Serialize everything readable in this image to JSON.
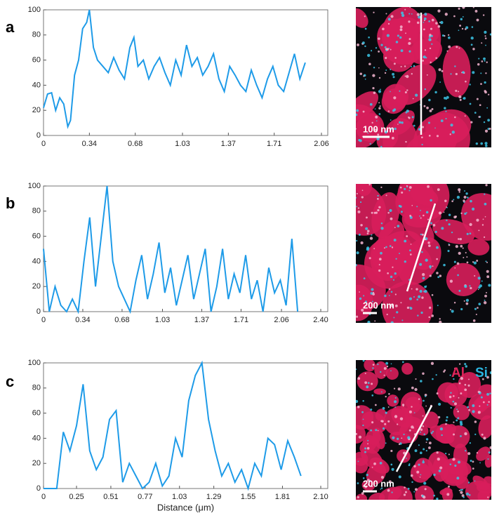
{
  "chart_data": [
    {
      "type": "line",
      "panel_label": "a",
      "x": [
        0,
        0.03,
        0.06,
        0.09,
        0.12,
        0.15,
        0.18,
        0.2,
        0.23,
        0.26,
        0.29,
        0.32,
        0.34,
        0.37,
        0.4,
        0.44,
        0.48,
        0.52,
        0.56,
        0.6,
        0.64,
        0.67,
        0.7,
        0.74,
        0.78,
        0.82,
        0.86,
        0.9,
        0.94,
        0.98,
        1.02,
        1.06,
        1.1,
        1.14,
        1.18,
        1.22,
        1.26,
        1.3,
        1.34,
        1.38,
        1.42,
        1.46,
        1.5,
        1.54,
        1.58,
        1.62,
        1.66,
        1.7,
        1.74,
        1.78,
        1.82,
        1.86,
        1.9,
        1.94
      ],
      "series": [
        {
          "color": "#1e9be8",
          "values": [
            22,
            33,
            34,
            20,
            30,
            25,
            7,
            12,
            48,
            60,
            85,
            90,
            100,
            70,
            60,
            55,
            50,
            62,
            52,
            45,
            70,
            78,
            55,
            60,
            45,
            55,
            62,
            50,
            40,
            60,
            48,
            72,
            55,
            62,
            48,
            55,
            65,
            45,
            35,
            55,
            48,
            40,
            35,
            52,
            40,
            30,
            45,
            55,
            40,
            35,
            50,
            65,
            45,
            58
          ]
        }
      ],
      "xlim": [
        0,
        2.06
      ],
      "xticks": [
        0,
        0.34,
        0.68,
        1.03,
        1.37,
        1.71,
        2.06
      ],
      "ylim": [
        0,
        100
      ],
      "yticks": [
        0,
        20,
        40,
        60,
        80,
        100
      ],
      "image": {
        "scale_bar": "100 nm"
      }
    },
    {
      "type": "line",
      "panel_label": "b",
      "x": [
        0,
        0.05,
        0.1,
        0.15,
        0.2,
        0.25,
        0.3,
        0.35,
        0.4,
        0.45,
        0.5,
        0.55,
        0.6,
        0.65,
        0.7,
        0.75,
        0.8,
        0.85,
        0.9,
        0.95,
        1.0,
        1.05,
        1.1,
        1.15,
        1.2,
        1.25,
        1.3,
        1.35,
        1.4,
        1.45,
        1.5,
        1.55,
        1.6,
        1.65,
        1.7,
        1.75,
        1.8,
        1.85,
        1.9,
        1.95,
        2.0,
        2.05,
        2.1,
        2.15,
        2.2
      ],
      "series": [
        {
          "color": "#1e9be8",
          "values": [
            50,
            0,
            20,
            5,
            0,
            10,
            0,
            40,
            75,
            20,
            60,
            100,
            40,
            20,
            10,
            0,
            25,
            45,
            10,
            30,
            55,
            15,
            35,
            5,
            25,
            45,
            10,
            30,
            50,
            0,
            20,
            50,
            10,
            30,
            15,
            45,
            10,
            25,
            0,
            35,
            15,
            25,
            5,
            58,
            0
          ]
        }
      ],
      "xlim": [
        0,
        2.4
      ],
      "xticks": [
        0,
        0.34,
        0.68,
        1.03,
        1.37,
        1.71,
        2.06,
        {
          "value": 2.4,
          "label": "2.40"
        }
      ],
      "ylim": [
        0,
        100
      ],
      "yticks": [
        0,
        20,
        40,
        60,
        80,
        100
      ],
      "image": {
        "scale_bar": "200 nm"
      }
    },
    {
      "type": "line",
      "panel_label": "c",
      "xlabel": "Distance (μm)",
      "x": [
        0,
        0.05,
        0.1,
        0.15,
        0.2,
        0.25,
        0.3,
        0.35,
        0.4,
        0.45,
        0.5,
        0.55,
        0.6,
        0.65,
        0.7,
        0.75,
        0.8,
        0.85,
        0.9,
        0.95,
        1.0,
        1.05,
        1.1,
        1.15,
        1.2,
        1.25,
        1.3,
        1.35,
        1.4,
        1.45,
        1.5,
        1.55,
        1.6,
        1.65,
        1.7,
        1.75,
        1.8,
        1.85,
        1.9,
        1.95
      ],
      "series": [
        {
          "color": "#1e9be8",
          "values": [
            0,
            0,
            0,
            45,
            30,
            50,
            83,
            30,
            15,
            25,
            55,
            62,
            5,
            20,
            10,
            0,
            5,
            20,
            2,
            10,
            40,
            25,
            70,
            90,
            100,
            55,
            30,
            10,
            20,
            5,
            15,
            0,
            20,
            10,
            40,
            35,
            15,
            38,
            25,
            10
          ]
        }
      ],
      "xlim": [
        0,
        2.1
      ],
      "xticks": [
        0,
        0.25,
        0.51,
        0.77,
        1.03,
        1.29,
        1.55,
        1.81,
        {
          "value": 2.1,
          "label": "2.10"
        }
      ],
      "ylim": [
        0,
        100
      ],
      "yticks": [
        0,
        20,
        40,
        60,
        80,
        100
      ],
      "image": {
        "scale_bar": "200 nm",
        "legend": [
          "Al",
          "Si"
        ]
      }
    }
  ]
}
